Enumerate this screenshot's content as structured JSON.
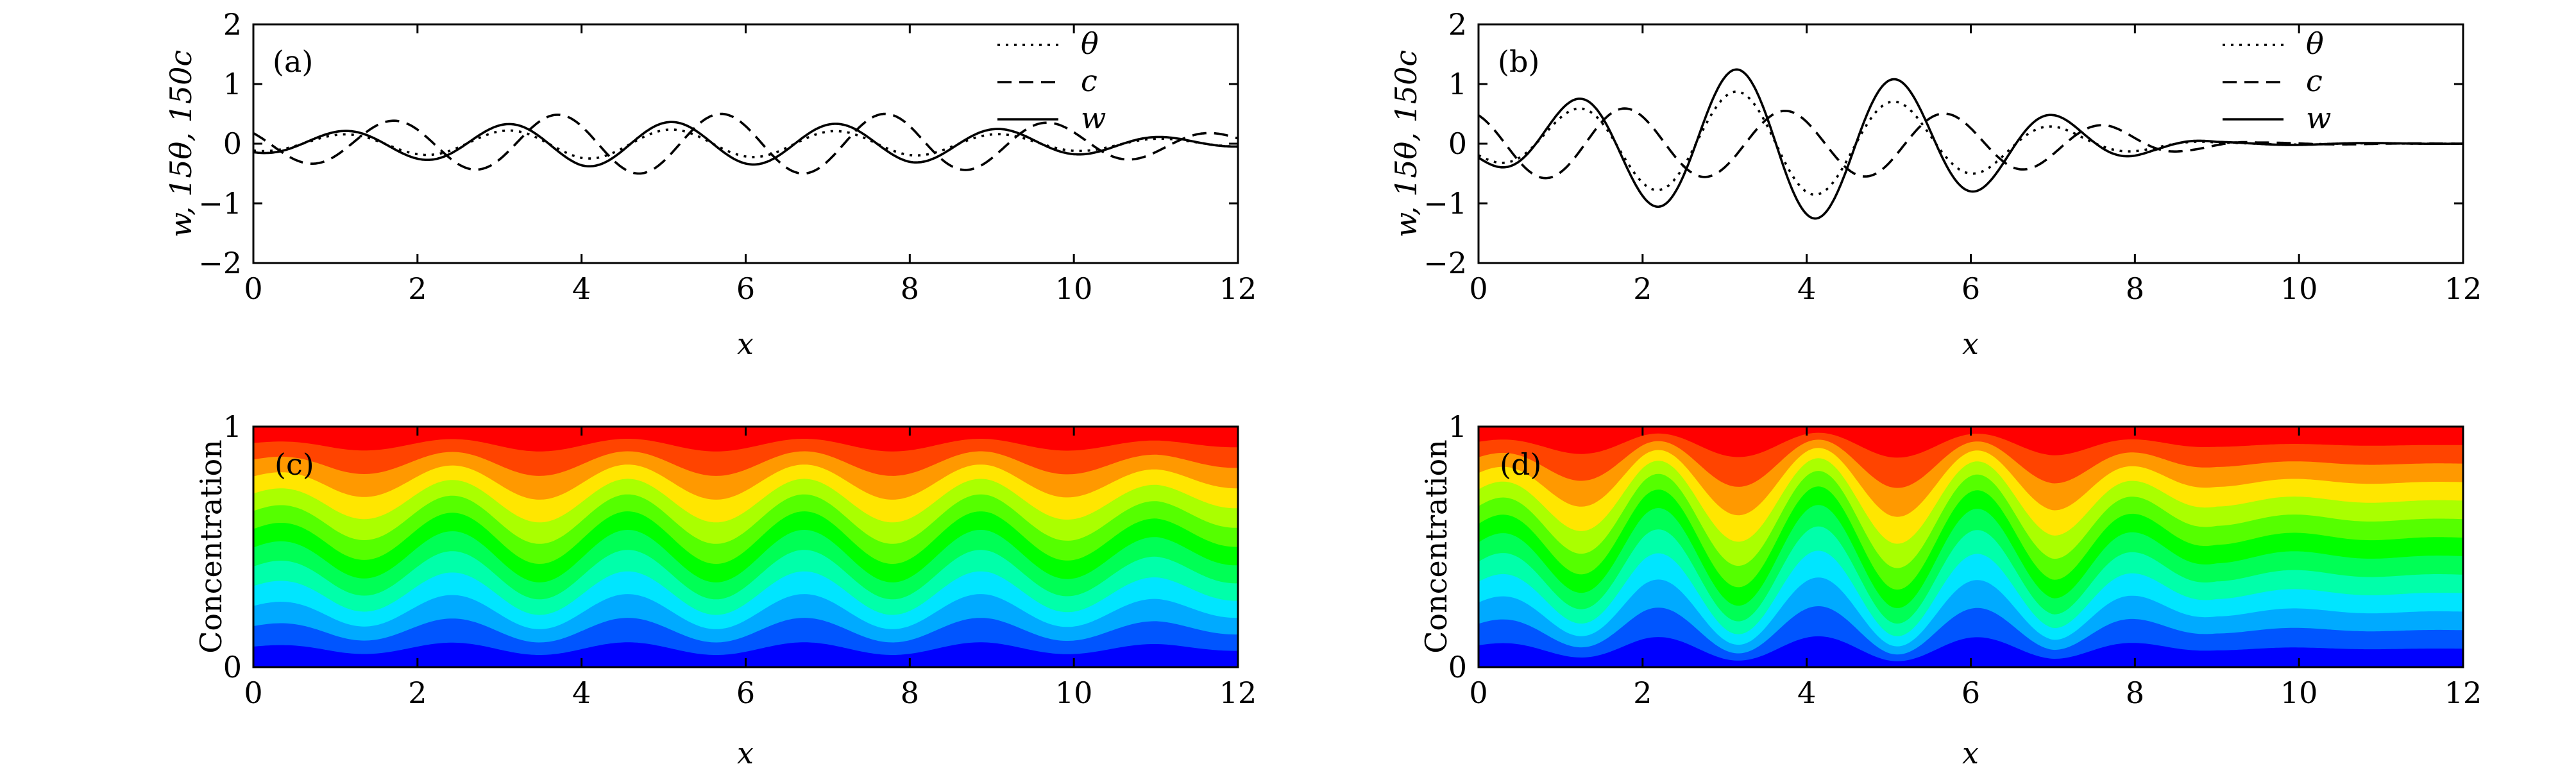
{
  "colors": {
    "contour": [
      "#0000ff",
      "#0055ff",
      "#00aaff",
      "#00e5ff",
      "#00ffaa",
      "#00ff55",
      "#00ff00",
      "#55ff00",
      "#aaff00",
      "#ffe600",
      "#ff9900",
      "#ff4400",
      "#ff0000"
    ],
    "frame": "#000000"
  },
  "chart_data": [
    {
      "id": "a",
      "type": "line",
      "panel_label": "(a)",
      "xlabel": "x",
      "ylabel": "w, 15θ, 150c",
      "xlim": [
        0,
        12
      ],
      "ylim": [
        -2,
        2
      ],
      "xticks": [
        "0",
        "2",
        "4",
        "6",
        "8",
        "10",
        "12"
      ],
      "yticks": [
        "2",
        "1",
        "0",
        "−1",
        "−2"
      ],
      "legend_position": "top-right",
      "series": [
        {
          "name": "θ",
          "style": "dotted",
          "amp": [
            [
              0,
              0.12
            ],
            [
              4,
              0.25
            ],
            [
              8,
              0.2
            ],
            [
              12,
              0.05
            ]
          ],
          "wavelength": 2.0,
          "phase": 0.6,
          "decay_start": 12
        },
        {
          "name": "c",
          "style": "dashed",
          "amp": [
            [
              0,
              0.3
            ],
            [
              4,
              0.5
            ],
            [
              8,
              0.5
            ],
            [
              12,
              0.15
            ]
          ],
          "wavelength": 2.0,
          "phase": 1.2,
          "decay_start": 12
        },
        {
          "name": "w",
          "style": "solid",
          "amp": [
            [
              0,
              0.15
            ],
            [
              4,
              0.38
            ],
            [
              8,
              0.32
            ],
            [
              12,
              0.05
            ]
          ],
          "wavelength": 2.0,
          "phase": 0.6,
          "decay_start": 12
        }
      ]
    },
    {
      "id": "b",
      "type": "line",
      "panel_label": "(b)",
      "xlabel": "x",
      "ylabel": "w, 15θ, 150c",
      "xlim": [
        0,
        12
      ],
      "ylim": [
        -2,
        2
      ],
      "xticks": [
        "0",
        "2",
        "4",
        "6",
        "8",
        "10",
        "12"
      ],
      "yticks": [
        "2",
        "1",
        "0",
        "−1",
        "−2"
      ],
      "legend_position": "top-right",
      "series": [
        {
          "name": "θ",
          "style": "dotted",
          "amp": [
            [
              0,
              0.25
            ],
            [
              1.6,
              0.7
            ],
            [
              2.7,
              0.85
            ],
            [
              3.7,
              0.9
            ],
            [
              4.6,
              0.8
            ],
            [
              5.6,
              0.6
            ],
            [
              6.5,
              0.4
            ],
            [
              7.4,
              0.2
            ],
            [
              8.2,
              0.1
            ],
            [
              9,
              0.02
            ],
            [
              12,
              0
            ]
          ],
          "wavelength": 1.95,
          "phase": 0.7,
          "decay_start": 9
        },
        {
          "name": "c",
          "style": "dashed",
          "amp": [
            [
              0,
              0.55
            ],
            [
              1.5,
              0.6
            ],
            [
              3,
              0.55
            ],
            [
              5,
              0.55
            ],
            [
              6.5,
              0.45
            ],
            [
              7.7,
              0.3
            ],
            [
              8.6,
              0.12
            ],
            [
              9.5,
              0.02
            ],
            [
              12,
              0
            ]
          ],
          "wavelength": 1.95,
          "phase": 1.3,
          "decay_start": 9.5
        },
        {
          "name": "w",
          "style": "solid",
          "amp": [
            [
              0,
              0.3
            ],
            [
              1.6,
              0.9
            ],
            [
              2.7,
              1.2
            ],
            [
              3.7,
              1.3
            ],
            [
              4.6,
              1.2
            ],
            [
              5.6,
              0.95
            ],
            [
              6.5,
              0.65
            ],
            [
              7.4,
              0.35
            ],
            [
              8.2,
              0.15
            ],
            [
              9,
              0.03
            ],
            [
              12,
              0
            ]
          ],
          "wavelength": 1.95,
          "phase": 0.7,
          "decay_start": 9
        }
      ]
    },
    {
      "id": "c",
      "type": "heatmap",
      "panel_label": "(c)",
      "xlabel": "x",
      "ylabel": "Concentration",
      "xlim": [
        0,
        12
      ],
      "ylim": [
        0,
        1
      ],
      "xticks": [
        "0",
        "2",
        "4",
        "6",
        "8",
        "10",
        "12"
      ],
      "yticks": [
        "1",
        "0"
      ],
      "wavelength": 2.15,
      "levels": 13,
      "amp_profile": [
        [
          0,
          0.05
        ],
        [
          1,
          0.09
        ],
        [
          3,
          0.11
        ],
        [
          9,
          0.11
        ],
        [
          11,
          0.08
        ],
        [
          12,
          0.04
        ]
      ]
    },
    {
      "id": "d",
      "type": "heatmap",
      "panel_label": "(d)",
      "xlabel": "x",
      "ylabel": "Concentration",
      "xlim": [
        0,
        12
      ],
      "ylim": [
        0,
        1
      ],
      "xticks": [
        "0",
        "2",
        "4",
        "6",
        "8",
        "10",
        "12"
      ],
      "yticks": [
        "1",
        "0"
      ],
      "wavelength": 1.95,
      "levels": 13,
      "amp_profile": [
        [
          0,
          0.08
        ],
        [
          1,
          0.14
        ],
        [
          2,
          0.2
        ],
        [
          5,
          0.22
        ],
        [
          7,
          0.18
        ],
        [
          8,
          0.1
        ],
        [
          9,
          0.03
        ],
        [
          12,
          0
        ]
      ]
    }
  ]
}
